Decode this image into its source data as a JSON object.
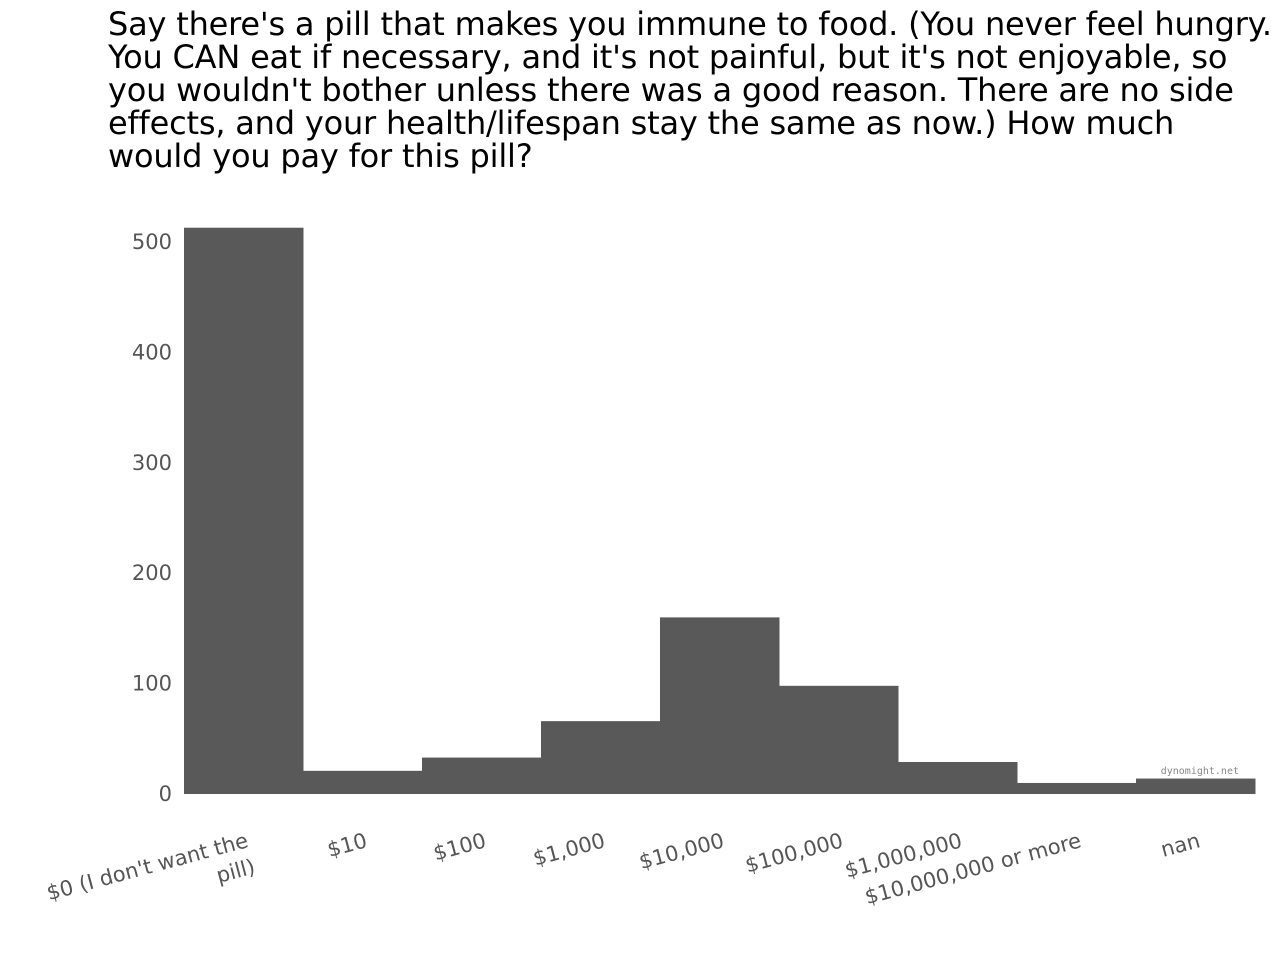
{
  "chart_data": {
    "type": "bar",
    "title": "Say there's a pill that makes you immune to food. (You never feel hungry. You CAN eat if necessary, and it's not painful, but it's not enjoyable, so you wouldn't bother unless there was a good reason. There are no side effects, and your health/lifespan stay the same as now.) How much would you pay for this pill?",
    "categories": [
      "$0 (I don't want the pill)",
      "$10",
      "$100",
      "$1,000",
      "$10,000",
      "$100,000",
      "$1,000,000",
      "$10,000,000 or more",
      "nan"
    ],
    "values": [
      513,
      21,
      33,
      66,
      160,
      98,
      29,
      10,
      14
    ],
    "xlabel": "",
    "ylabel": "",
    "ylim": [
      0,
      520
    ],
    "yticks": [
      0,
      100,
      200,
      300,
      400,
      500
    ],
    "bar_color": "#595959",
    "grid": false,
    "watermark": "dynomight.net"
  }
}
